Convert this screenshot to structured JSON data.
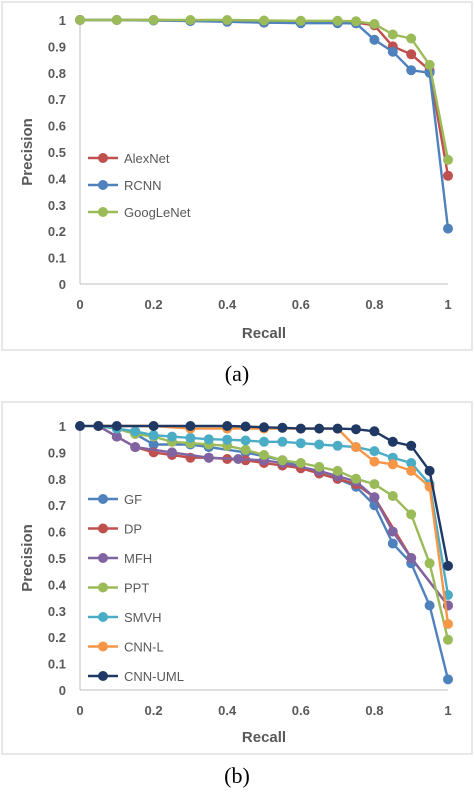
{
  "captions": [
    "(a)",
    "(b)"
  ],
  "chart_data": [
    {
      "type": "line",
      "xlabel": "Recall",
      "ylabel": "Precision",
      "xlim": [
        0,
        1
      ],
      "ylim": [
        0,
        1
      ],
      "xticks": [
        "0",
        "0.2",
        "0.4",
        "0.6",
        "0.8",
        "1"
      ],
      "yticks": [
        "0",
        "0.1",
        "0.2",
        "0.3",
        "0.4",
        "0.5",
        "0.6",
        "0.7",
        "0.8",
        "0.9",
        "1"
      ],
      "grid": false,
      "legend_position": "left",
      "series": [
        {
          "name": "AlexNet",
          "color": "#c0504d",
          "points": [
            [
              0,
              1
            ],
            [
              0.1,
              1
            ],
            [
              0.2,
              1
            ],
            [
              0.3,
              0.998
            ],
            [
              0.4,
              0.995
            ],
            [
              0.5,
              0.99
            ],
            [
              0.6,
              0.99
            ],
            [
              0.7,
              0.99
            ],
            [
              0.75,
              0.99
            ],
            [
              0.8,
              0.98
            ],
            [
              0.85,
              0.9
            ],
            [
              0.9,
              0.87
            ],
            [
              0.95,
              0.81
            ],
            [
              1,
              0.41
            ]
          ]
        },
        {
          "name": "RCNN",
          "color": "#4f81bd",
          "points": [
            [
              0,
              1
            ],
            [
              0.1,
              1
            ],
            [
              0.2,
              0.998
            ],
            [
              0.3,
              0.996
            ],
            [
              0.4,
              0.993
            ],
            [
              0.5,
              0.99
            ],
            [
              0.6,
              0.988
            ],
            [
              0.7,
              0.988
            ],
            [
              0.75,
              0.987
            ],
            [
              0.8,
              0.925
            ],
            [
              0.85,
              0.88
            ],
            [
              0.9,
              0.81
            ],
            [
              0.95,
              0.8
            ],
            [
              1,
              0.21
            ]
          ]
        },
        {
          "name": "GoogLeNet",
          "color": "#9bbb59",
          "points": [
            [
              0,
              1
            ],
            [
              0.1,
              1
            ],
            [
              0.2,
              1
            ],
            [
              0.3,
              1
            ],
            [
              0.4,
              1
            ],
            [
              0.5,
              0.998
            ],
            [
              0.6,
              0.997
            ],
            [
              0.7,
              0.997
            ],
            [
              0.75,
              0.995
            ],
            [
              0.8,
              0.985
            ],
            [
              0.85,
              0.945
            ],
            [
              0.9,
              0.93
            ],
            [
              0.95,
              0.83
            ],
            [
              1,
              0.47
            ]
          ]
        }
      ]
    },
    {
      "type": "line",
      "xlabel": "Recall",
      "ylabel": "Precision",
      "xlim": [
        0,
        1
      ],
      "ylim": [
        0,
        1
      ],
      "xticks": [
        "0",
        "0.2",
        "0.4",
        "0.6",
        "0.8",
        "1"
      ],
      "yticks": [
        "0",
        "0.1",
        "0.2",
        "0.3",
        "0.4",
        "0.5",
        "0.6",
        "0.7",
        "0.8",
        "0.9",
        "1"
      ],
      "grid": false,
      "legend_position": "left",
      "series": [
        {
          "name": "GF",
          "color": "#4f81bd",
          "points": [
            [
              0.05,
              1
            ],
            [
              0.1,
              0.99
            ],
            [
              0.15,
              0.97
            ],
            [
              0.2,
              0.93
            ],
            [
              0.3,
              0.93
            ],
            [
              0.35,
              0.92
            ],
            [
              0.45,
              0.9
            ],
            [
              0.55,
              0.87
            ],
            [
              0.65,
              0.82
            ],
            [
              0.7,
              0.8
            ],
            [
              0.75,
              0.77
            ],
            [
              0.8,
              0.7
            ],
            [
              0.85,
              0.555
            ],
            [
              0.9,
              0.48
            ],
            [
              0.95,
              0.32
            ],
            [
              1,
              0.04
            ]
          ]
        },
        {
          "name": "DP",
          "color": "#c0504d",
          "points": [
            [
              0.05,
              1
            ],
            [
              0.1,
              0.96
            ],
            [
              0.15,
              0.92
            ],
            [
              0.2,
              0.9
            ],
            [
              0.25,
              0.89
            ],
            [
              0.3,
              0.88
            ],
            [
              0.35,
              0.88
            ],
            [
              0.4,
              0.875
            ],
            [
              0.45,
              0.87
            ],
            [
              0.5,
              0.86
            ],
            [
              0.55,
              0.85
            ],
            [
              0.6,
              0.84
            ],
            [
              0.65,
              0.82
            ],
            [
              0.7,
              0.8
            ],
            [
              0.75,
              0.78
            ],
            [
              0.8,
              0.73
            ],
            [
              0.9,
              0.5
            ],
            [
              1,
              0.32
            ]
          ]
        },
        {
          "name": "MFH",
          "color": "#8064a2",
          "points": [
            [
              0.05,
              1
            ],
            [
              0.1,
              0.96
            ],
            [
              0.15,
              0.92
            ],
            [
              0.25,
              0.9
            ],
            [
              0.35,
              0.88
            ],
            [
              0.43,
              0.875
            ],
            [
              0.5,
              0.87
            ],
            [
              0.55,
              0.86
            ],
            [
              0.65,
              0.83
            ],
            [
              0.7,
              0.81
            ],
            [
              0.75,
              0.79
            ],
            [
              0.8,
              0.73
            ],
            [
              0.85,
              0.6
            ],
            [
              0.9,
              0.5
            ],
            [
              1,
              0.32
            ]
          ]
        },
        {
          "name": "PPT",
          "color": "#9bbb59",
          "points": [
            [
              0.05,
              1
            ],
            [
              0.1,
              0.99
            ],
            [
              0.15,
              0.97
            ],
            [
              0.2,
              0.96
            ],
            [
              0.25,
              0.94
            ],
            [
              0.3,
              0.935
            ],
            [
              0.35,
              0.93
            ],
            [
              0.4,
              0.925
            ],
            [
              0.45,
              0.91
            ],
            [
              0.5,
              0.89
            ],
            [
              0.55,
              0.87
            ],
            [
              0.6,
              0.86
            ],
            [
              0.65,
              0.845
            ],
            [
              0.7,
              0.83
            ],
            [
              0.75,
              0.8
            ],
            [
              0.8,
              0.78
            ],
            [
              0.85,
              0.735
            ],
            [
              0.9,
              0.665
            ],
            [
              0.95,
              0.48
            ],
            [
              1,
              0.19
            ]
          ]
        },
        {
          "name": "SMVH",
          "color": "#4bacc6",
          "points": [
            [
              0.05,
              1
            ],
            [
              0.1,
              0.99
            ],
            [
              0.15,
              0.98
            ],
            [
              0.2,
              0.965
            ],
            [
              0.25,
              0.96
            ],
            [
              0.3,
              0.955
            ],
            [
              0.35,
              0.95
            ],
            [
              0.4,
              0.948
            ],
            [
              0.45,
              0.945
            ],
            [
              0.5,
              0.94
            ],
            [
              0.55,
              0.94
            ],
            [
              0.6,
              0.935
            ],
            [
              0.65,
              0.93
            ],
            [
              0.7,
              0.925
            ],
            [
              0.75,
              0.92
            ],
            [
              0.8,
              0.905
            ],
            [
              0.85,
              0.88
            ],
            [
              0.9,
              0.86
            ],
            [
              0.95,
              0.78
            ],
            [
              1,
              0.36
            ]
          ]
        },
        {
          "name": "CNN-L",
          "color": "#f79646",
          "points": [
            [
              0.05,
              1
            ],
            [
              0.2,
              1
            ],
            [
              0.3,
              0.99
            ],
            [
              0.4,
              0.99
            ],
            [
              0.5,
              0.99
            ],
            [
              0.6,
              0.99
            ],
            [
              0.7,
              0.99
            ],
            [
              0.75,
              0.92
            ],
            [
              0.8,
              0.865
            ],
            [
              0.85,
              0.855
            ],
            [
              0.9,
              0.83
            ],
            [
              0.95,
              0.77
            ],
            [
              1,
              0.25
            ]
          ]
        },
        {
          "name": "CNN-UML",
          "color": "#1f3864",
          "points": [
            [
              0,
              1
            ],
            [
              0.05,
              1
            ],
            [
              0.1,
              1
            ],
            [
              0.2,
              1
            ],
            [
              0.3,
              1
            ],
            [
              0.4,
              1
            ],
            [
              0.45,
              0.998
            ],
            [
              0.5,
              0.995
            ],
            [
              0.55,
              0.993
            ],
            [
              0.6,
              0.99
            ],
            [
              0.65,
              0.99
            ],
            [
              0.7,
              0.99
            ],
            [
              0.75,
              0.988
            ],
            [
              0.8,
              0.98
            ],
            [
              0.85,
              0.94
            ],
            [
              0.9,
              0.925
            ],
            [
              0.95,
              0.83
            ],
            [
              1,
              0.47
            ]
          ]
        }
      ]
    }
  ]
}
